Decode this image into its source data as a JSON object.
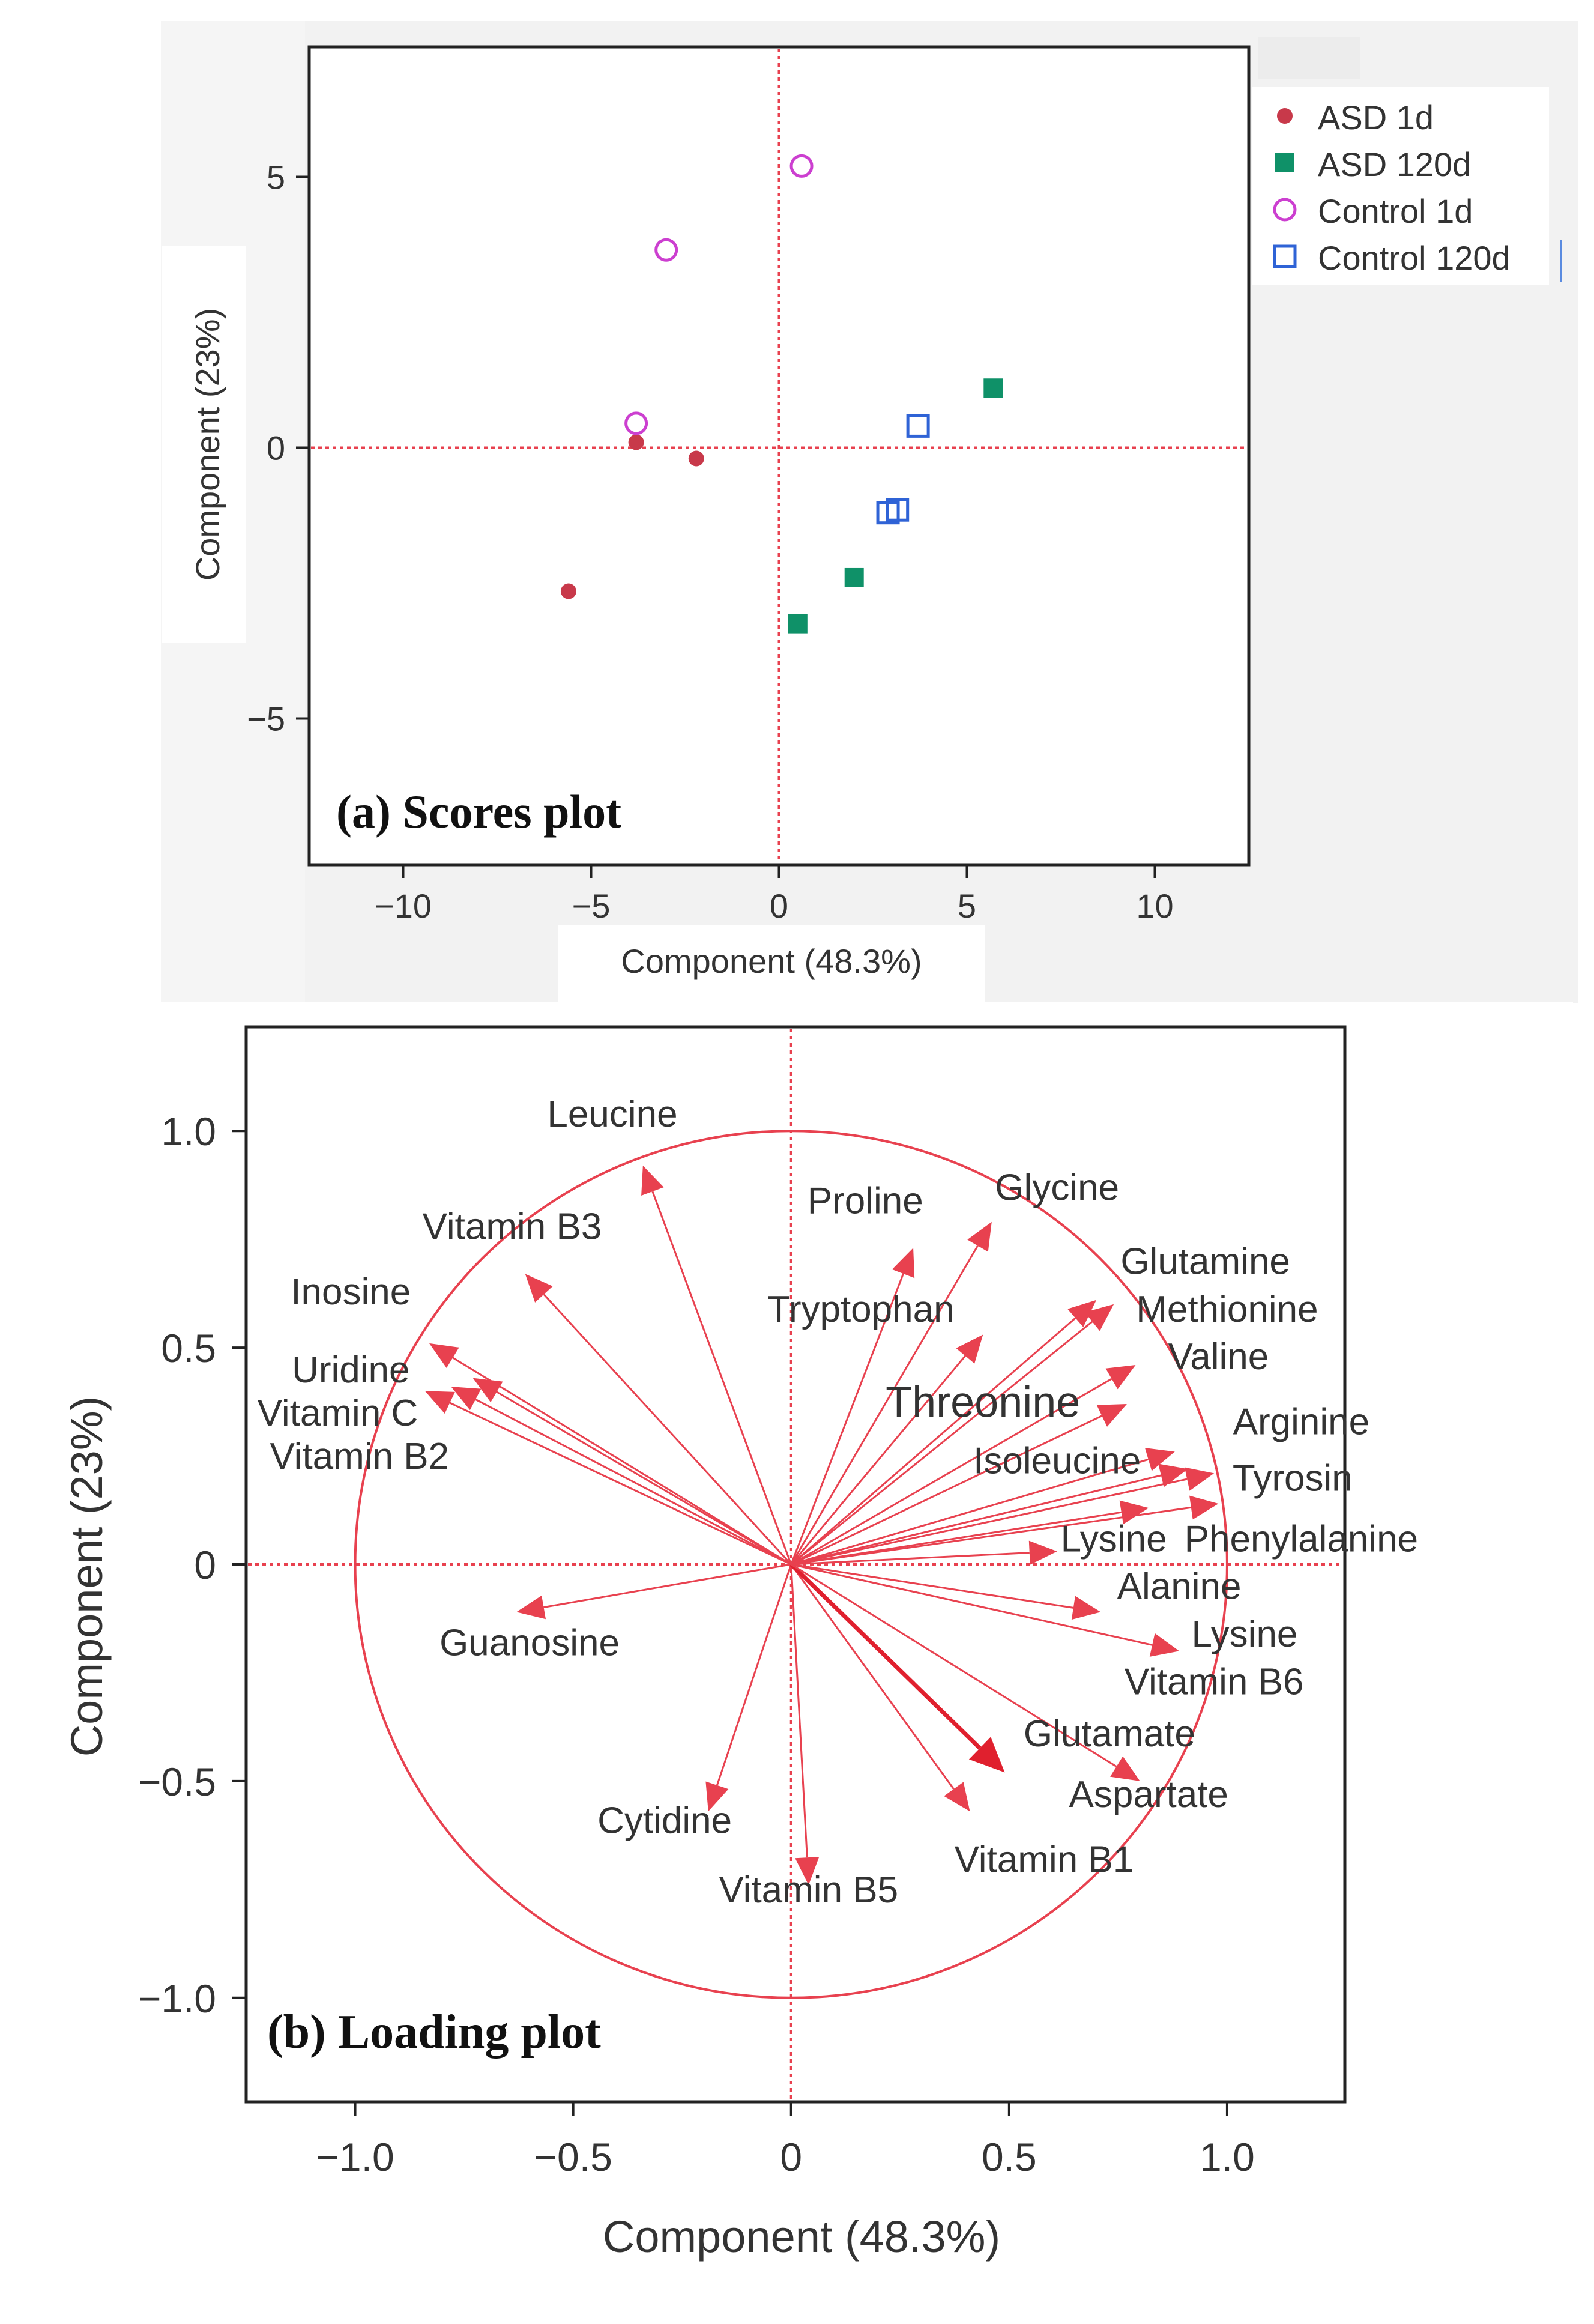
{
  "chart_data": [
    {
      "type": "scatter",
      "panel_label": "(a) Scores plot",
      "xlabel": "Component (48.3%)",
      "ylabel": "Component (23%)",
      "xlim": [
        -12.5,
        12.5
      ],
      "ylim": [
        -7.7,
        7.4
      ],
      "xticks": [
        -10,
        -5,
        0,
        5,
        10
      ],
      "xtick_labels": [
        "−10",
        "−5",
        "0",
        "5",
        "10"
      ],
      "yticks": [
        5,
        0,
        -5
      ],
      "ytick_labels": [
        "5",
        "0",
        "−5"
      ],
      "legend_position": "top-right",
      "series": [
        {
          "name": "ASD 1d",
          "marker": "filled-circle",
          "color": "#c8394a",
          "points": [
            [
              -3.8,
              0.1
            ],
            [
              -2.2,
              -0.2
            ],
            [
              -5.6,
              -2.65
            ]
          ]
        },
        {
          "name": "ASD 120d",
          "marker": "filled-square",
          "color": "#0f9168",
          "points": [
            [
              5.7,
              1.1
            ],
            [
              2.0,
              -2.4
            ],
            [
              0.5,
              -3.25
            ]
          ]
        },
        {
          "name": "Control 1d",
          "marker": "open-circle",
          "color": "#cc3fd0",
          "points": [
            [
              0.6,
              5.2
            ],
            [
              -3.0,
              3.65
            ],
            [
              -3.8,
              0.45
            ]
          ]
        },
        {
          "name": "Control 120d",
          "marker": "open-square",
          "color": "#2f63d6",
          "points": [
            [
              3.7,
              0.4
            ],
            [
              2.9,
              -1.2
            ],
            [
              3.15,
              -1.15
            ]
          ]
        }
      ]
    },
    {
      "type": "biplot",
      "panel_label": "(b) Loading plot",
      "xlabel": "Component (48.3%)",
      "ylabel": "Component (23%)",
      "xlim": [
        -1.25,
        1.27
      ],
      "ylim": [
        -1.24,
        1.24
      ],
      "xticks": [
        -1.0,
        -0.5,
        0,
        0.5,
        1.0
      ],
      "xtick_labels": [
        "−1.0",
        "−0.5",
        "0",
        "0.5",
        "1.0"
      ],
      "yticks": [
        1.0,
        0.5,
        0,
        -0.5,
        -1.0
      ],
      "ytick_labels": [
        "1.0",
        "0.5",
        "0",
        "−0.5",
        "−1.0"
      ],
      "circle_radius": 1.0,
      "color": "#e8414f",
      "loadings": [
        {
          "name": "Leucine",
          "x": -0.34,
          "y": 0.92
        },
        {
          "name": "Vitamin B3",
          "x": -0.61,
          "y": 0.67
        },
        {
          "name": "Inosine",
          "x": -0.83,
          "y": 0.51
        },
        {
          "name": "Uridine",
          "x": -0.73,
          "y": 0.43
        },
        {
          "name": "Vitamin C",
          "x": -0.78,
          "y": 0.41
        },
        {
          "name": "Vitamin B2",
          "x": -0.84,
          "y": 0.4
        },
        {
          "name": "Guanosine",
          "x": -0.63,
          "y": -0.11
        },
        {
          "name": "Cytidine",
          "x": -0.19,
          "y": -0.57
        },
        {
          "name": "Vitamin B5",
          "x": 0.04,
          "y": -0.74
        },
        {
          "name": "Vitamin B1",
          "x": 0.41,
          "y": -0.57
        },
        {
          "name": "Glutamate",
          "x": 0.49,
          "y": -0.48,
          "emphasis": true
        },
        {
          "name": "Aspartate",
          "x": 0.8,
          "y": -0.5
        },
        {
          "name": "Lysine",
          "x": 0.89,
          "y": -0.2
        },
        {
          "name": "Vitamin B6",
          "x": 0.71,
          "y": -0.11
        },
        {
          "name": "Alanine",
          "x": 0.61,
          "y": 0.03
        },
        {
          "name": "Lysine",
          "x": 0.82,
          "y": 0.13
        },
        {
          "name": "Phenylalanine",
          "x": 0.98,
          "y": 0.14
        },
        {
          "name": "Tyrosin",
          "x": 0.97,
          "y": 0.21
        },
        {
          "name": "Arginine",
          "x": 0.91,
          "y": 0.22
        },
        {
          "name": "Isoleucine",
          "x": 0.88,
          "y": 0.26
        },
        {
          "name": "Threonine",
          "x": 0.77,
          "y": 0.37
        },
        {
          "name": "Valine",
          "x": 0.79,
          "y": 0.46
        },
        {
          "name": "Methionine",
          "x": 0.74,
          "y": 0.6
        },
        {
          "name": "Glutamine",
          "x": 0.7,
          "y": 0.61
        },
        {
          "name": "Tryptophan",
          "x": 0.44,
          "y": 0.53
        },
        {
          "name": "Proline",
          "x": 0.28,
          "y": 0.73
        },
        {
          "name": "Glycine",
          "x": 0.46,
          "y": 0.79
        }
      ],
      "labels": [
        {
          "text": "Leucine",
          "x": -0.41,
          "y": 1.01
        },
        {
          "text": "Vitamin B3",
          "x": -0.64,
          "y": 0.75
        },
        {
          "text": "Inosine",
          "x": -1.01,
          "y": 0.6
        },
        {
          "text": "Uridine",
          "x": -1.01,
          "y": 0.42
        },
        {
          "text": "Vitamin C",
          "x": -1.04,
          "y": 0.32
        },
        {
          "text": "Vitamin B2",
          "x": -0.99,
          "y": 0.22
        },
        {
          "text": "Guanosine",
          "x": -0.6,
          "y": -0.21
        },
        {
          "text": "Cytidine",
          "x": -0.29,
          "y": -0.62
        },
        {
          "text": "Vitamin B5",
          "x": 0.04,
          "y": -0.78
        },
        {
          "text": "Vitamin B1",
          "x": 0.58,
          "y": -0.71
        },
        {
          "text": "Glutamate",
          "x": 0.73,
          "y": -0.42
        },
        {
          "text": "Aspartate",
          "x": 0.82,
          "y": -0.56
        },
        {
          "text": "Lysine",
          "x": 1.04,
          "y": -0.19
        },
        {
          "text": "Vitamin B6",
          "x": 0.97,
          "y": -0.3
        },
        {
          "text": "Alanine",
          "x": 0.89,
          "y": -0.08
        },
        {
          "text": "Lysine",
          "x": 0.74,
          "y": 0.03
        },
        {
          "text": "Phenylalanine",
          "x": 1.17,
          "y": 0.03
        },
        {
          "text": "Tyrosin",
          "x": 1.15,
          "y": 0.17
        },
        {
          "text": "Arginine",
          "x": 1.17,
          "y": 0.3
        },
        {
          "text": "Isoleucine",
          "x": 0.61,
          "y": 0.21
        },
        {
          "text": "Threonine",
          "x": 0.44,
          "y": 0.34
        },
        {
          "text": "Valine",
          "x": 0.98,
          "y": 0.45
        },
        {
          "text": "Methionine",
          "x": 1.0,
          "y": 0.56
        },
        {
          "text": "Glutamine",
          "x": 0.95,
          "y": 0.67
        },
        {
          "text": "Tryptophan",
          "x": 0.16,
          "y": 0.56
        },
        {
          "text": "Proline",
          "x": 0.17,
          "y": 0.81
        },
        {
          "text": "Glycine",
          "x": 0.61,
          "y": 0.84
        }
      ]
    }
  ]
}
